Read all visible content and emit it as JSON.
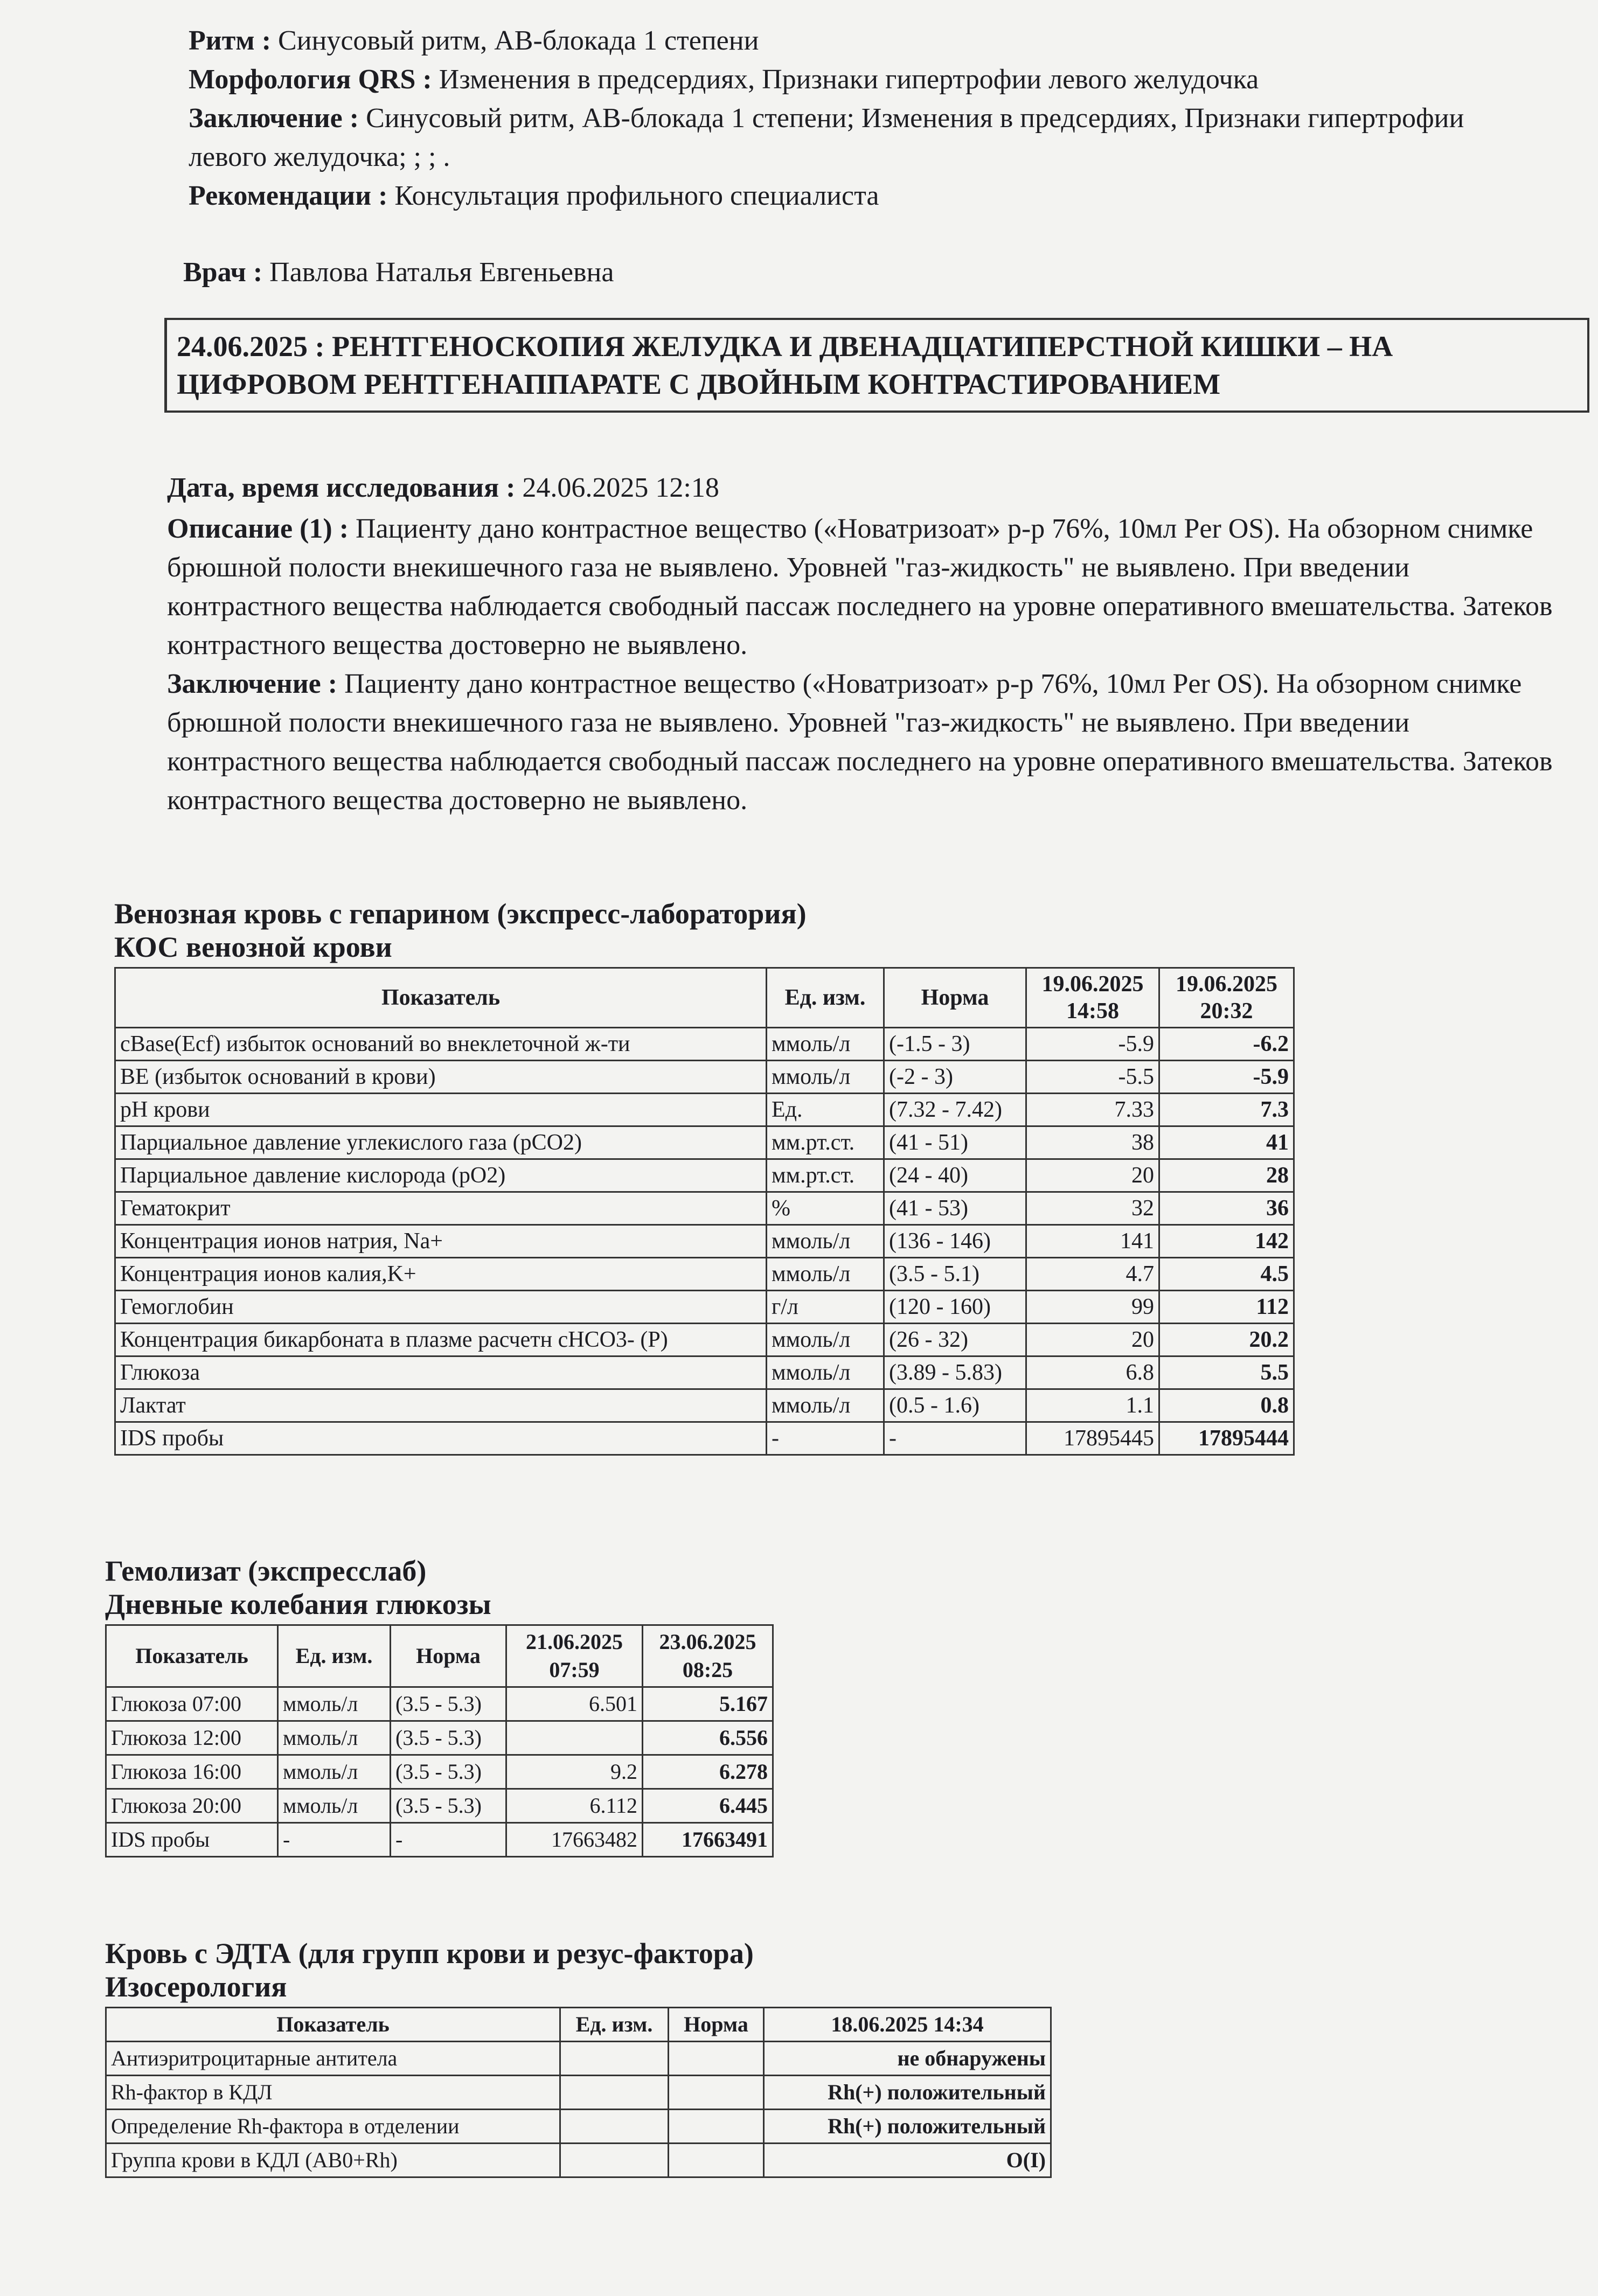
{
  "ecg": {
    "fields": [
      {
        "label": "Ритм :",
        "value": "Синусовый ритм, АВ-блокада 1 степени"
      },
      {
        "label": "Морфология QRS :",
        "value": "Изменения в предсердиях, Признаки гипертрофии левого желудочка"
      },
      {
        "label": "Заключение :",
        "value": "Синусовый ритм, АВ-блокада 1 степени; Изменения в предсердиях, Признаки гипертрофии левого желудочка; ; ; ."
      },
      {
        "label": "Рекомендации :",
        "value": "Консультация профильного специалиста"
      }
    ],
    "doctor": {
      "label": "Врач :",
      "value": "Павлова Наталья Евгеньевна"
    }
  },
  "xray": {
    "title": "24.06.2025 : РЕНТГЕНОСКОПИЯ ЖЕЛУДКА И ДВЕНАДЦАТИПЕРСТНОЙ КИШКИ – НА ЦИФРОВОМ РЕНТГЕНАППАРАТЕ С ДВОЙНЫМ КОНТРАСТИРОВАНИЕМ",
    "fields": [
      {
        "label": "Дата, время исследования :",
        "value": "24.06.2025 12:18"
      },
      {
        "label": "Описание (1) :",
        "value": "Пациенту дано контрастное вещество («Новатризоат» р-р 76%, 10мл Per OS). На обзорном снимке брюшной полости внекишечного газа не выявлено. Уровней \"газ-жидкость\" не выявлено. При введении контрастного вещества наблюдается свободный пассаж последнего на уровне оперативного вмешательства. Затеков контрастного вещества достоверно не выявлено."
      },
      {
        "label": "Заключение :",
        "value": "Пациенту дано контрастное вещество («Новатризоат» р-р 76%, 10мл Per OS). На обзорном снимке брюшной полости внекишечного газа не выявлено. Уровней \"газ-жидкость\" не выявлено. При введении контрастного вещества наблюдается свободный пассаж последнего на уровне оперативного вмешательства. Затеков контрастного вещества достоверно не выявлено."
      }
    ]
  },
  "sections": [
    {
      "headings": [
        "Венозная кровь с гепарином (экспресс-лаборатория)",
        "КОС венозной крови"
      ],
      "table": {
        "header": [
          "Показатель",
          "Ед. изм.",
          "Норма",
          "19.06.2025 14:58",
          "19.06.2025 20:32"
        ],
        "rows": [
          [
            "cBase(Ecf) избыток оснований во внеклеточной ж-ти",
            "ммоль/л",
            "(-1.5 - 3)",
            "-5.9",
            "-6.2"
          ],
          [
            "BE (избыток оснований в крови)",
            "ммоль/л",
            "(-2 - 3)",
            "-5.5",
            "-5.9"
          ],
          [
            "pH крови",
            "Ед.",
            "(7.32 - 7.42)",
            "7.33",
            "7.3"
          ],
          [
            "Парциальное давление углекислого газа (pCO2)",
            "мм.рт.ст.",
            "(41 - 51)",
            "38",
            "41"
          ],
          [
            "Парциальное давление кислорода (pO2)",
            "мм.рт.ст.",
            "(24 - 40)",
            "20",
            "28"
          ],
          [
            "Гематокрит",
            "%",
            "(41 - 53)",
            "32",
            "36"
          ],
          [
            "Концентрация ионов натрия, Na+",
            "ммоль/л",
            "(136 - 146)",
            "141",
            "142"
          ],
          [
            "Концентрация ионов калия,K+",
            "ммоль/л",
            "(3.5 - 5.1)",
            "4.7",
            "4.5"
          ],
          [
            "Гемоглобин",
            "г/л",
            "(120 - 160)",
            "99",
            "112"
          ],
          [
            "Концентрация бикарбоната в плазме расчетн cHCO3- (P)",
            "ммоль/л",
            "(26 - 32)",
            "20",
            "20.2"
          ],
          [
            "Глюкоза",
            "ммоль/л",
            "(3.89 - 5.83)",
            "6.8",
            "5.5"
          ],
          [
            "Лактат",
            "ммоль/л",
            "(0.5 - 1.6)",
            "1.1",
            "0.8"
          ],
          [
            "IDS пробы",
            "-",
            "-",
            "17895445",
            "17895444"
          ]
        ]
      }
    },
    {
      "headings": [
        "Гемолизат (экспресслаб)",
        "Дневные колебания глюкозы"
      ],
      "table": {
        "header": [
          "Показатель",
          "Ед. изм.",
          "Норма",
          "21.06.2025 07:59",
          "23.06.2025 08:25"
        ],
        "rows": [
          [
            "Глюкоза 07:00",
            "ммоль/л",
            "(3.5 - 5.3)",
            "6.501",
            "5.167"
          ],
          [
            "Глюкоза 12:00",
            "ммоль/л",
            "(3.5 - 5.3)",
            null,
            "6.556"
          ],
          [
            "Глюкоза 16:00",
            "ммоль/л",
            "(3.5 - 5.3)",
            "9.2",
            "6.278"
          ],
          [
            "Глюкоза 20:00",
            "ммоль/л",
            "(3.5 - 5.3)",
            "6.112",
            "6.445"
          ],
          [
            "IDS пробы",
            "-",
            "-",
            "17663482",
            "17663491"
          ]
        ]
      }
    },
    {
      "headings": [
        "Кровь с ЭДТА (для групп крови и резус-фактора)",
        "Изосерология"
      ],
      "table": {
        "header": [
          "Показатель",
          "Ед. изм.",
          "Норма",
          "18.06.2025 14:34"
        ],
        "rows": [
          [
            "Антиэритроцитарные антитела",
            null,
            null,
            "не обнаружены"
          ],
          [
            "Rh-фактор в КДЛ",
            null,
            null,
            "Rh(+) положительный"
          ],
          [
            "Определение Rh-фактора в отделении",
            null,
            null,
            "Rh(+) положительный"
          ],
          [
            "Группа крови в КДЛ (АВ0+Rh)",
            null,
            null,
            "O(I)"
          ]
        ]
      }
    }
  ]
}
